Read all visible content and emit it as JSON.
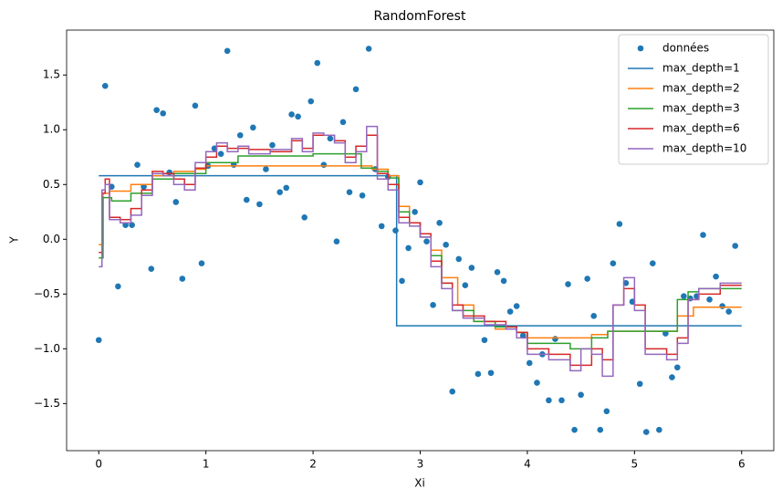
{
  "chart_data": {
    "type": "line",
    "title": "RandomForest",
    "x_label": "Xi",
    "y_label": "Y",
    "xlim": [
      -0.3,
      6.3
    ],
    "ylim": [
      -1.93,
      1.91
    ],
    "xticks": [
      0,
      1,
      2,
      3,
      4,
      5,
      6
    ],
    "yticks": [
      {
        "value": -1.5,
        "label": "−1.5"
      },
      {
        "value": -1.0,
        "label": "−1.0"
      },
      {
        "value": -0.5,
        "label": "−0.5"
      },
      {
        "value": 0,
        "label": "0.0"
      },
      {
        "value": 0.5,
        "label": "0.5"
      },
      {
        "value": 1.0,
        "label": "1.0"
      },
      {
        "value": 1.5,
        "label": "1.5"
      }
    ],
    "legend": "upper right",
    "drawstyle": "steps-post",
    "series": [
      {
        "name": "données",
        "kind": "scatter",
        "color": "#1f77b4",
        "x": [
          0,
          0.06,
          0.12,
          0.18,
          0.25,
          0.31,
          0.36,
          0.42,
          0.49,
          0.54,
          0.6,
          0.66,
          0.72,
          0.78,
          0.9,
          0.96,
          1.02,
          1.08,
          1.14,
          1.2,
          1.26,
          1.32,
          1.38,
          1.44,
          1.5,
          1.56,
          1.62,
          1.69,
          1.75,
          1.8,
          1.86,
          1.92,
          1.98,
          2.04,
          2.1,
          2.16,
          2.22,
          2.28,
          2.34,
          2.4,
          2.46,
          2.52,
          2.58,
          2.64,
          2.7,
          2.77,
          2.83,
          2.89,
          2.95,
          3.0,
          3.06,
          3.12,
          3.18,
          3.24,
          3.3,
          3.36,
          3.42,
          3.48,
          3.54,
          3.6,
          3.66,
          3.72,
          3.78,
          3.84,
          3.9,
          3.96,
          4.02,
          4.09,
          4.14,
          4.2,
          4.26,
          4.32,
          4.38,
          4.44,
          4.5,
          4.56,
          4.62,
          4.68,
          4.74,
          4.8,
          4.86,
          4.92,
          4.98,
          5.05,
          5.11,
          5.17,
          5.23,
          5.29,
          5.35,
          5.4,
          5.46,
          5.52,
          5.58,
          5.64,
          5.7,
          5.76,
          5.82,
          5.88,
          5.94
        ],
        "values": [
          -0.92,
          1.4,
          0.48,
          -0.43,
          0.13,
          0.13,
          0.68,
          0.48,
          -0.27,
          1.18,
          1.15,
          0.61,
          0.34,
          -0.36,
          1.22,
          -0.22,
          0.67,
          0.83,
          0.78,
          1.72,
          0.68,
          0.95,
          0.36,
          1.02,
          0.32,
          0.64,
          0.86,
          0.43,
          0.47,
          1.14,
          1.12,
          0.2,
          1.26,
          1.61,
          0.68,
          0.92,
          -0.02,
          1.07,
          0.43,
          1.37,
          0.4,
          1.74,
          0.64,
          0.12,
          0.57,
          0.08,
          -0.38,
          -0.08,
          0.25,
          0.52,
          -0.02,
          -0.6,
          0.15,
          -0.05,
          -1.39,
          -0.18,
          -0.42,
          -0.26,
          -1.23,
          -0.92,
          -1.22,
          -0.3,
          -0.38,
          -0.66,
          -0.61,
          -0.88,
          -1.13,
          -1.31,
          -1.05,
          -1.47,
          -0.91,
          -1.47,
          -0.41,
          -1.74,
          -1.42,
          -0.36,
          -0.7,
          -1.74,
          -1.57,
          -0.22,
          0.14,
          -0.4,
          -0.57,
          -1.32,
          -1.76,
          -0.22,
          -1.74,
          -0.86,
          -1.26,
          -1.17,
          -0.52,
          -0.54,
          -0.52,
          0.04,
          -0.55,
          -0.34,
          -0.61,
          -0.66,
          -0.06
        ]
      },
      {
        "name": "max_depth=1",
        "kind": "step",
        "color": "#1f77b4",
        "x": [
          0,
          2.78,
          6
        ],
        "values": [
          0.58,
          -0.79,
          -0.79
        ]
      },
      {
        "name": "max_depth=2",
        "kind": "step",
        "color": "#ff7f0e",
        "x": [
          0,
          0.04,
          0.1,
          0.3,
          0.5,
          0.7,
          0.9,
          1.0,
          2.55,
          2.7,
          2.8,
          2.9,
          3.0,
          3.1,
          3.2,
          3.35,
          3.5,
          3.7,
          3.9,
          4.0,
          4.6,
          4.75,
          5.4,
          5.55,
          6
        ],
        "values": [
          -0.05,
          0.42,
          0.44,
          0.5,
          0.58,
          0.62,
          0.64,
          0.67,
          0.64,
          0.58,
          0.3,
          0.15,
          0.05,
          -0.1,
          -0.35,
          -0.6,
          -0.75,
          -0.82,
          -0.85,
          -0.9,
          -0.87,
          -0.84,
          -0.7,
          -0.62,
          -0.62
        ]
      },
      {
        "name": "max_depth=3",
        "kind": "step",
        "color": "#2ca02c",
        "x": [
          0,
          0.04,
          0.12,
          0.3,
          0.5,
          0.7,
          1.0,
          1.3,
          2.0,
          2.45,
          2.6,
          2.7,
          2.8,
          2.9,
          3.0,
          3.1,
          3.2,
          3.3,
          3.5,
          3.7,
          3.9,
          4.0,
          4.4,
          4.6,
          4.75,
          4.85,
          5.4,
          5.5,
          5.6,
          6
        ],
        "values": [
          -0.17,
          0.38,
          0.35,
          0.42,
          0.55,
          0.6,
          0.7,
          0.76,
          0.78,
          0.65,
          0.62,
          0.56,
          0.25,
          0.15,
          0.02,
          -0.15,
          -0.4,
          -0.65,
          -0.75,
          -0.8,
          -0.85,
          -0.95,
          -1.0,
          -0.9,
          -0.84,
          -0.84,
          -0.55,
          -0.48,
          -0.45,
          -0.45
        ]
      },
      {
        "name": "max_depth=6",
        "kind": "step",
        "color": "#d62728",
        "x": [
          0,
          0.03,
          0.06,
          0.1,
          0.2,
          0.3,
          0.4,
          0.5,
          0.6,
          0.7,
          0.8,
          0.9,
          1.0,
          1.1,
          1.2,
          1.4,
          1.6,
          1.8,
          1.9,
          2.0,
          2.1,
          2.2,
          2.3,
          2.4,
          2.5,
          2.6,
          2.7,
          2.8,
          2.9,
          3.0,
          3.1,
          3.2,
          3.3,
          3.4,
          3.6,
          3.8,
          3.9,
          4.0,
          4.2,
          4.4,
          4.6,
          4.7,
          4.8,
          4.9,
          5.0,
          5.1,
          5.3,
          5.4,
          5.5,
          5.6,
          5.8,
          6
        ],
        "values": [
          -0.12,
          0.42,
          0.55,
          0.2,
          0.18,
          0.28,
          0.45,
          0.62,
          0.6,
          0.55,
          0.5,
          0.65,
          0.75,
          0.85,
          0.83,
          0.82,
          0.8,
          0.9,
          0.83,
          0.95,
          0.95,
          0.9,
          0.75,
          0.85,
          0.95,
          0.6,
          0.5,
          0.2,
          0.15,
          0.05,
          -0.2,
          -0.4,
          -0.6,
          -0.7,
          -0.75,
          -0.8,
          -0.85,
          -1.0,
          -1.05,
          -1.15,
          -1.0,
          -1.1,
          -0.6,
          -0.45,
          -0.6,
          -1.0,
          -1.05,
          -0.9,
          -0.55,
          -0.5,
          -0.42,
          -0.42
        ]
      },
      {
        "name": "max_depth=10",
        "kind": "step",
        "color": "#9467bd",
        "x": [
          0,
          0.03,
          0.06,
          0.1,
          0.2,
          0.3,
          0.4,
          0.5,
          0.6,
          0.7,
          0.8,
          0.9,
          1.0,
          1.1,
          1.2,
          1.3,
          1.4,
          1.6,
          1.8,
          1.9,
          2.0,
          2.1,
          2.2,
          2.3,
          2.4,
          2.5,
          2.6,
          2.7,
          2.8,
          2.9,
          3.0,
          3.1,
          3.2,
          3.3,
          3.4,
          3.6,
          3.8,
          3.9,
          4.0,
          4.2,
          4.4,
          4.5,
          4.6,
          4.7,
          4.8,
          4.9,
          5.0,
          5.1,
          5.3,
          5.4,
          5.5,
          5.6,
          5.8,
          6
        ],
        "values": [
          -0.25,
          0.45,
          0.5,
          0.18,
          0.15,
          0.22,
          0.4,
          0.6,
          0.58,
          0.5,
          0.45,
          0.7,
          0.8,
          0.88,
          0.8,
          0.85,
          0.78,
          0.82,
          0.92,
          0.8,
          0.97,
          0.95,
          0.88,
          0.7,
          0.8,
          1.03,
          0.55,
          0.45,
          0.15,
          0.12,
          0.02,
          -0.25,
          -0.45,
          -0.65,
          -0.72,
          -0.78,
          -0.82,
          -0.9,
          -1.05,
          -1.1,
          -1.2,
          -1.0,
          -1.05,
          -1.25,
          -0.6,
          -0.35,
          -0.65,
          -1.05,
          -1.1,
          -0.95,
          -0.55,
          -0.45,
          -0.4,
          -0.4
        ]
      }
    ]
  }
}
